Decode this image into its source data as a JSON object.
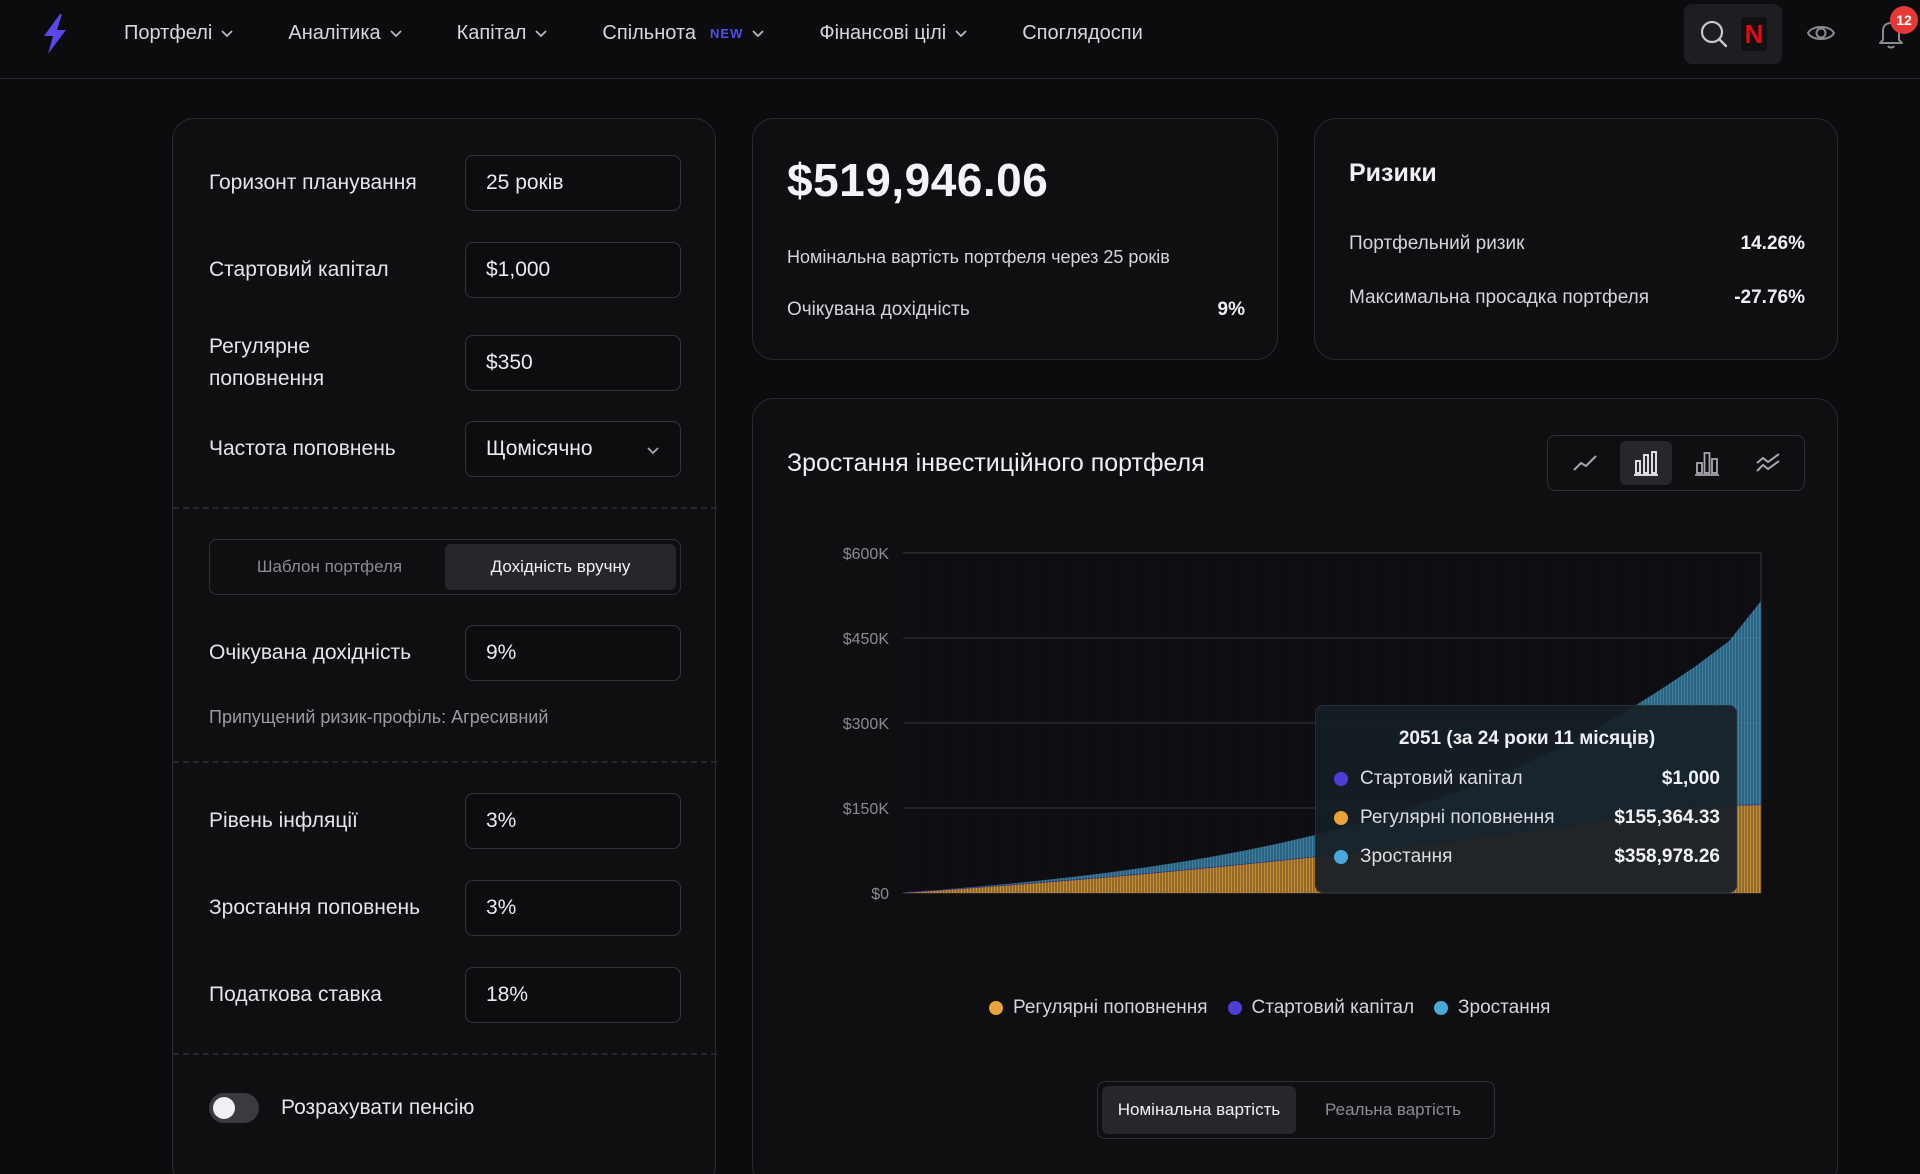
{
  "nav": {
    "items": [
      {
        "label": "Портфелі"
      },
      {
        "label": "Аналітика"
      },
      {
        "label": "Капітал"
      },
      {
        "label": "Спільнота",
        "badge": "NEW"
      },
      {
        "label": "Фінансові цілі"
      },
      {
        "label": "Споглядоспи"
      }
    ],
    "notifications": "12",
    "search_icon": "search-icon",
    "netflix_letter": "N"
  },
  "form": {
    "horizon": {
      "label": "Горизонт планування",
      "value": "25 років"
    },
    "start_capital": {
      "label": "Стартовий капітал",
      "value": "$1,000"
    },
    "regular_deposit": {
      "label": "Регулярне поповнення",
      "value": "$350"
    },
    "frequency": {
      "label": "Частота поповнень",
      "value": "Щомісячно"
    },
    "segment": {
      "option1": "Шаблон портфеля",
      "option2": "Дохідність вручну"
    },
    "expected_return": {
      "label": "Очікувана дохідність",
      "value": "9%"
    },
    "risk_hint": "Припущений ризик-профіль: Агресивний",
    "inflation": {
      "label": "Рівень інфляції",
      "value": "3%"
    },
    "deposit_growth": {
      "label": "Зростання поповнень",
      "value": "3%"
    },
    "tax_rate": {
      "label": "Податкова ставка",
      "value": "18%"
    },
    "pension_toggle": {
      "label": "Розрахувати пенсію",
      "on": false
    }
  },
  "summary": {
    "total": "$519,946.06",
    "subtitle": "Номінальна вартість портфеля через 25 років",
    "expected_return_label": "Очікувана дохідність",
    "expected_return_value": "9%"
  },
  "risks": {
    "title": "Ризики",
    "portfolio_risk_label": "Портфельний ризик",
    "portfolio_risk_value": "14.26%",
    "max_drawdown_label": "Максимальна просадка портфеля",
    "max_drawdown_value": "-27.76%"
  },
  "chart_panel": {
    "title": "Зростання інвестиційного портфеля",
    "tooltip": {
      "title": "2051 (за 24 роки 11 місяців)",
      "rows": [
        {
          "label": "Стартовий капітал",
          "value": "$1,000"
        },
        {
          "label": "Регулярні поповнення",
          "value": "$155,364.33"
        },
        {
          "label": "Зростання",
          "value": "$358,978.26"
        }
      ]
    },
    "mode": {
      "nominal": "Номінальна вартість",
      "real": "Реальна вартість"
    }
  },
  "colors": {
    "start_capital": "#4b3fd6",
    "regular": "#e8a33c",
    "growth": "#4aa8d8",
    "accent": "#5b4de6"
  },
  "chart_data": {
    "type": "area",
    "stacked": true,
    "x": [
      0,
      1,
      2,
      3,
      4,
      5,
      6,
      7,
      8,
      9,
      10,
      11,
      12,
      13,
      14,
      15,
      16,
      17,
      18,
      19,
      20,
      21,
      22,
      23,
      24,
      24.92
    ],
    "series": [
      {
        "name": "Регулярні поповнення",
        "color": "#e8a33c",
        "values": [
          0,
          4200,
          8500,
          13100,
          17900,
          22800,
          28000,
          33400,
          39000,
          44800,
          50900,
          57200,
          63700,
          70500,
          77500,
          84700,
          92200,
          100000,
          108000,
          116300,
          124900,
          133800,
          142900,
          150500,
          154200,
          155364.33
        ]
      },
      {
        "name": "Стартовий капітал",
        "color": "#4b3fd6",
        "values": [
          1000,
          1000,
          1000,
          1000,
          1000,
          1000,
          1000,
          1000,
          1000,
          1000,
          1000,
          1000,
          1000,
          1000,
          1000,
          1000,
          1000,
          1000,
          1000,
          1000,
          1000,
          1000,
          1000,
          1000,
          1000,
          1000
        ]
      },
      {
        "name": "Зростання",
        "color": "#4aa8d8",
        "values": [
          0,
          200,
          800,
          1700,
          3100,
          5000,
          7400,
          10400,
          14100,
          18600,
          24000,
          30400,
          38000,
          46900,
          57200,
          69100,
          82800,
          98500,
          116400,
          136700,
          159700,
          185700,
          214900,
          247800,
          290000,
          358978.26
        ]
      }
    ],
    "ylim": [
      0,
      600000
    ],
    "yticks": [
      "$0",
      "$150K",
      "$300K",
      "$450K",
      "$600K"
    ],
    "grid": true,
    "legend": "bottom"
  }
}
